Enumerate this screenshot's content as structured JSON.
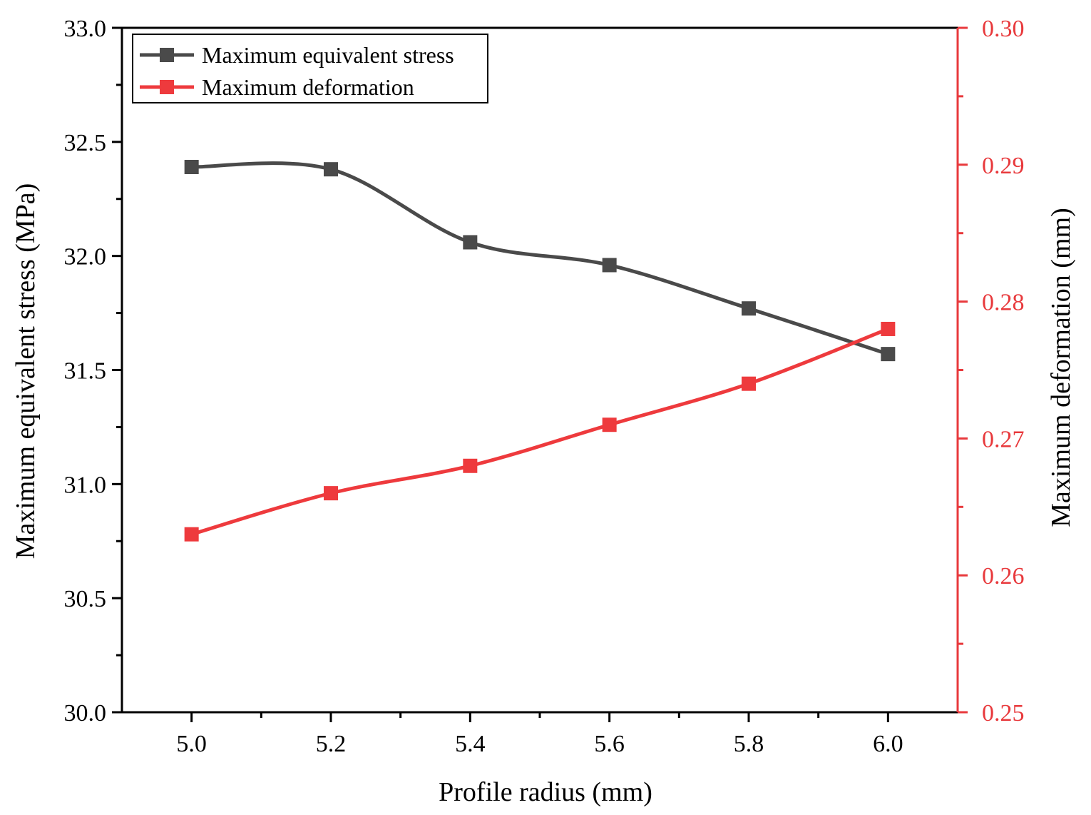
{
  "chart_data": {
    "type": "line",
    "xlabel": "Profile radius (mm)",
    "xlim": [
      4.9,
      6.1
    ],
    "x_ticks": [
      "5.0",
      "5.2",
      "5.4",
      "5.6",
      "5.8",
      "6.0"
    ],
    "x": [
      5.0,
      5.2,
      5.4,
      5.6,
      5.8,
      6.0
    ],
    "left_axis": {
      "label": "Maximum equivalent stress (MPa)",
      "ylim": [
        30.0,
        33.0
      ],
      "ticks": [
        "30.0",
        "30.5",
        "31.0",
        "31.5",
        "32.0",
        "32.5",
        "33.0"
      ],
      "color": "#000000"
    },
    "right_axis": {
      "label": "Maximum deformation (mm)",
      "ylim": [
        0.25,
        0.3
      ],
      "ticks": [
        "0.25",
        "0.26",
        "0.27",
        "0.28",
        "0.29",
        "0.30"
      ],
      "color": "#e8393c"
    },
    "series": [
      {
        "name": "Maximum equivalent stress",
        "axis": "left",
        "color": "#4a4a4a",
        "values": [
          32.39,
          32.38,
          32.06,
          31.96,
          31.77,
          31.57
        ]
      },
      {
        "name": "Maximum deformation",
        "axis": "right",
        "color": "#ee3a3d",
        "values": [
          0.263,
          0.266,
          0.268,
          0.271,
          0.274,
          0.278
        ]
      }
    ],
    "legend": "top-left"
  }
}
